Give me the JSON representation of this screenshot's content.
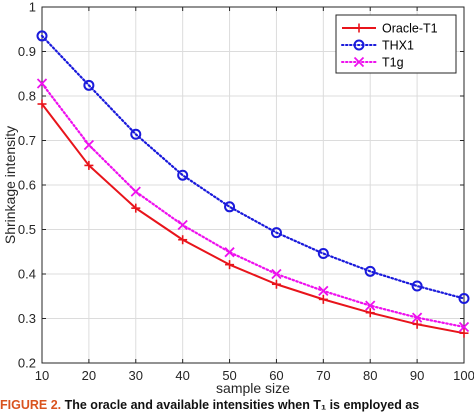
{
  "chart_data": {
    "type": "line",
    "xlabel": "sample size",
    "ylabel": "Shrinkage intensity",
    "xlim": [
      10,
      100
    ],
    "ylim": [
      0.2,
      1
    ],
    "x": [
      10,
      20,
      30,
      40,
      50,
      60,
      70,
      80,
      90,
      100
    ],
    "xticks": [
      "10",
      "20",
      "30",
      "40",
      "50",
      "60",
      "70",
      "80",
      "90",
      "100"
    ],
    "yticks": [
      "0.2",
      "0.3",
      "0.4",
      "0.5",
      "0.6",
      "0.7",
      "0.8",
      "0.9",
      "1"
    ],
    "grid": true,
    "legend_position": "top-right",
    "series": [
      {
        "name": "Oracle-T1",
        "color": "#e8141b",
        "line_style": "solid",
        "marker": "plus",
        "values": [
          0.782,
          0.644,
          0.548,
          0.477,
          0.421,
          0.377,
          0.343,
          0.313,
          0.287,
          0.267
        ]
      },
      {
        "name": "THX1",
        "color": "#1a1adb",
        "line_style": "dotted",
        "marker": "circle",
        "values": [
          0.935,
          0.824,
          0.714,
          0.622,
          0.551,
          0.493,
          0.446,
          0.406,
          0.373,
          0.345
        ]
      },
      {
        "name": "T1g",
        "color": "#ee10ee",
        "line_style": "dotted",
        "marker": "x",
        "values": [
          0.828,
          0.69,
          0.585,
          0.51,
          0.449,
          0.4,
          0.362,
          0.329,
          0.302,
          0.281
        ]
      }
    ]
  },
  "caption": {
    "figure_label": "FIGURE 2.",
    "text": "The oracle and available intensities when T₁ is employed as"
  }
}
